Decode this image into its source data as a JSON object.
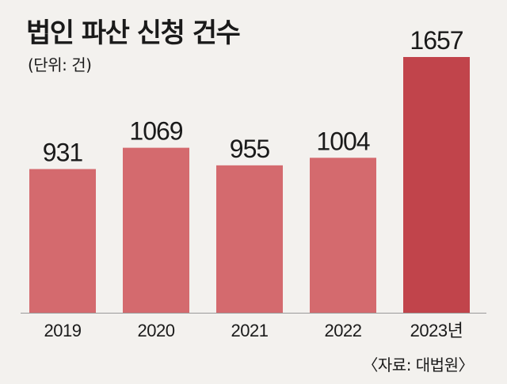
{
  "title": "법인 파산 신청 건수",
  "unit_note": "(단위: 건)",
  "source": "〈자료: 대법원〉",
  "colors": {
    "bar": "#d46a6e",
    "bar_highlight": "#c1444b",
    "background": "#f3f1ee",
    "text": "#1a1a1a"
  },
  "chart_data": {
    "type": "bar",
    "title": "법인 파산 신청 건수",
    "xlabel": "",
    "ylabel": "",
    "categories": [
      "2019",
      "2020",
      "2021",
      "2022",
      "2023년"
    ],
    "values": [
      931,
      1069,
      955,
      1004,
      1657
    ],
    "value_labels": [
      "931",
      "1069",
      "955",
      "1004",
      "1657"
    ],
    "highlight_index": 4,
    "ylim": [
      0,
      1657
    ],
    "grid": false,
    "legend": "none"
  }
}
